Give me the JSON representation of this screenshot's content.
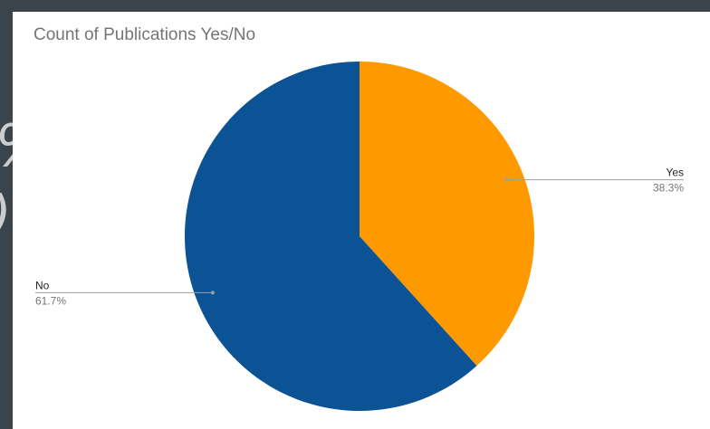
{
  "chart_data": {
    "type": "pie",
    "title": "Count of Publications Yes/No",
    "slices": [
      {
        "label": "Yes",
        "value": 38.3,
        "value_label": "38.3%",
        "color": "#ff9900"
      },
      {
        "label": "No",
        "value": 61.7,
        "value_label": "61.7%",
        "color": "#0b5394"
      }
    ],
    "start_angle_deg": 0,
    "direction": "clockwise",
    "legend": "none",
    "grid": false
  },
  "colors": {
    "frame_background": "#3c444b",
    "card_background": "#ffffff",
    "title_text": "#757575",
    "leader_line": "#9e9e9e",
    "label_text": "#222222",
    "percent_text": "#757575"
  }
}
